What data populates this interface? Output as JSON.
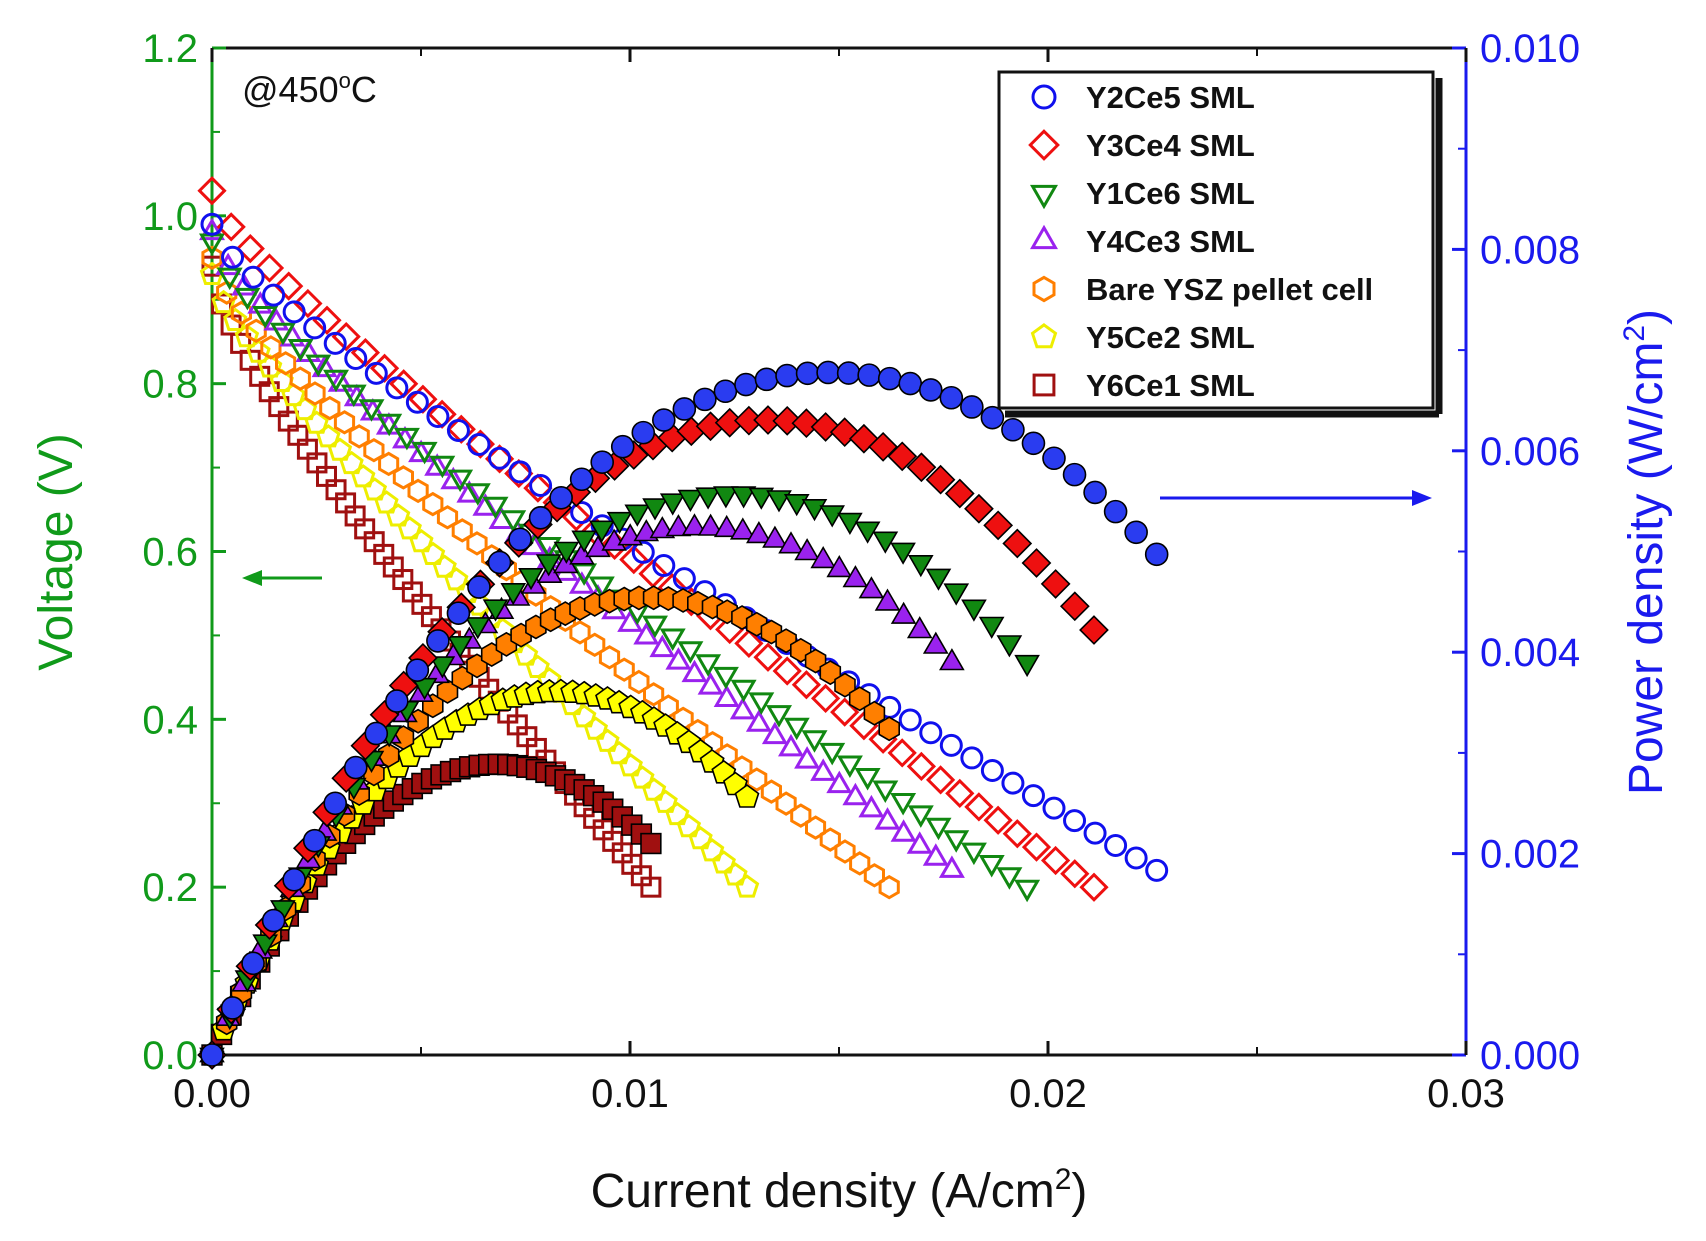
{
  "chart_data": {
    "type": "scatter",
    "annotation": "@450",
    "annotation_sup": "o",
    "annotation_tail": "C",
    "xaxis": {
      "label": "Current density (A/cm",
      "label_sup": "2",
      "label_tail": ")",
      "range": [
        0,
        0.03
      ],
      "ticks": [
        "0.00",
        "0.01",
        "0.02",
        "0.03"
      ]
    },
    "yaxis_left": {
      "label": "Voltage (V)",
      "range": [
        0,
        1.2
      ],
      "ticks": [
        "0.0",
        "0.2",
        "0.4",
        "0.6",
        "0.8",
        "1.0",
        "1.2"
      ]
    },
    "yaxis_right": {
      "label": "Power density (W/cm",
      "label_sup": "2",
      "label_tail": ")",
      "range": [
        0,
        0.01
      ],
      "ticks": [
        "0.000",
        "0.002",
        "0.004",
        "0.006",
        "0.008",
        "0.010"
      ]
    },
    "colors": {
      "left_axis": "#109a1a",
      "right_axis": "#1a1aee"
    },
    "series": [
      {
        "name": "Y2Ce5 SML",
        "marker": "circle",
        "color": "#1010ee",
        "fill": "#2a3cf0",
        "v_start": 0.99,
        "v_end": 0.22,
        "i_max": 0.0226,
        "curvature": 0.18
      },
      {
        "name": "Y3Ce4 SML",
        "marker": "diamond",
        "color": "#ee1010",
        "fill": "#ee1010",
        "v_start": 1.03,
        "v_end": 0.2,
        "i_max": 0.0211,
        "curvature": 0.2
      },
      {
        "name": "Y1Ce6 SML",
        "marker": "triangle-down",
        "color": "#118811",
        "fill": "#118811",
        "v_start": 0.97,
        "v_end": 0.2,
        "i_max": 0.0195,
        "curvature": 0.19
      },
      {
        "name": "Y4Ce3 SML",
        "marker": "triangle-up",
        "color": "#9a22ee",
        "fill": "#9a22ee",
        "v_start": 0.98,
        "v_end": 0.22,
        "i_max": 0.0177,
        "curvature": 0.2
      },
      {
        "name": "Bare YSZ pellet cell",
        "marker": "hexagon",
        "color": "#ff7f00",
        "fill": "#ff7f00",
        "v_start": 0.95,
        "v_end": 0.2,
        "i_max": 0.0162,
        "curvature": 0.2
      },
      {
        "name": "Y5Ce2 SML",
        "marker": "pentagon",
        "color": "#eeee00",
        "fill": "#ffff00",
        "v_start": 0.93,
        "v_end": 0.2,
        "i_max": 0.0128,
        "curvature": 0.14
      },
      {
        "name": "Y6Ce1 SML",
        "marker": "square",
        "color": "#a01010",
        "fill": "#a01010",
        "v_start": 0.94,
        "v_end": 0.2,
        "i_max": 0.0105,
        "curvature": 0.23
      }
    ]
  }
}
